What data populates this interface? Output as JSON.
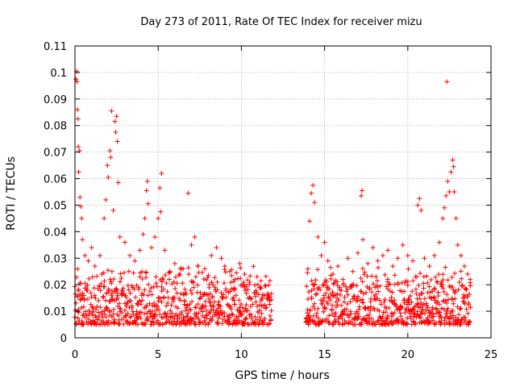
{
  "chart_data": {
    "type": "scatter",
    "title": "Day 273 of 2011, Rate Of TEC Index for receiver mizu",
    "xlabel": "GPS time / hours",
    "ylabel": "ROTI / TECUs",
    "xlim": [
      0,
      25
    ],
    "ylim": [
      0,
      0.11
    ],
    "grid": true,
    "marker": "+",
    "xticks": [
      0,
      5,
      10,
      15,
      20,
      25
    ],
    "xtick_labels": [
      "0",
      "5",
      "10",
      "15",
      "20",
      "25"
    ],
    "yticks": [
      0,
      0.01,
      0.02,
      0.03,
      0.04,
      0.05,
      0.06,
      0.07,
      0.08,
      0.09,
      0.1,
      0.11
    ],
    "ytick_labels": [
      "0",
      "0.01",
      "0.02",
      "0.03",
      "0.04",
      "0.05",
      "0.06",
      "0.07",
      "0.08",
      "0.09",
      "0.1",
      "0.11"
    ],
    "series": [
      {
        "name": "ROTI",
        "color": "#ff0000",
        "points": [
          [
            0.05,
            0.0975
          ],
          [
            0.1,
            0.1005
          ],
          [
            0.12,
            0.0965
          ],
          [
            0.15,
            0.086
          ],
          [
            0.18,
            0.0825
          ],
          [
            0.2,
            0.072
          ],
          [
            0.22,
            0.0625
          ],
          [
            0.28,
            0.0705
          ],
          [
            0.3,
            0.053
          ],
          [
            0.35,
            0.0495
          ],
          [
            0.4,
            0.045
          ],
          [
            0.45,
            0.037
          ],
          [
            0.6,
            0.031
          ],
          [
            0.8,
            0.029
          ],
          [
            1.0,
            0.034
          ],
          [
            1.2,
            0.027
          ],
          [
            1.5,
            0.031
          ],
          [
            1.75,
            0.045
          ],
          [
            1.85,
            0.052
          ],
          [
            1.95,
            0.065
          ],
          [
            2.0,
            0.0605
          ],
          [
            2.1,
            0.0705
          ],
          [
            2.15,
            0.068
          ],
          [
            2.2,
            0.0855
          ],
          [
            2.3,
            0.048
          ],
          [
            2.4,
            0.0815
          ],
          [
            2.45,
            0.0775
          ],
          [
            2.5,
            0.0835
          ],
          [
            2.55,
            0.074
          ],
          [
            2.6,
            0.0585
          ],
          [
            2.7,
            0.038
          ],
          [
            3.0,
            0.036
          ],
          [
            3.3,
            0.031
          ],
          [
            3.6,
            0.029
          ],
          [
            3.9,
            0.033
          ],
          [
            4.1,
            0.039
          ],
          [
            4.2,
            0.045
          ],
          [
            4.3,
            0.0555
          ],
          [
            4.35,
            0.059
          ],
          [
            4.4,
            0.0505
          ],
          [
            4.6,
            0.034
          ],
          [
            4.8,
            0.038
          ],
          [
            5.0,
            0.045
          ],
          [
            5.1,
            0.0565
          ],
          [
            5.15,
            0.0475
          ],
          [
            5.2,
            0.062
          ],
          [
            5.4,
            0.033
          ],
          [
            5.7,
            0.025
          ],
          [
            6.0,
            0.028
          ],
          [
            6.3,
            0.024
          ],
          [
            6.5,
            0.026
          ],
          [
            6.8,
            0.0545
          ],
          [
            7.0,
            0.035
          ],
          [
            7.2,
            0.038
          ],
          [
            7.4,
            0.027
          ],
          [
            7.8,
            0.026
          ],
          [
            8.2,
            0.031
          ],
          [
            8.5,
            0.034
          ],
          [
            8.8,
            0.03
          ],
          [
            9.0,
            0.027
          ],
          [
            9.3,
            0.025
          ],
          [
            9.6,
            0.022
          ],
          [
            9.9,
            0.028
          ],
          [
            10.2,
            0.024
          ],
          [
            10.5,
            0.021
          ],
          [
            10.8,
            0.017
          ],
          [
            11.1,
            0.019
          ],
          [
            11.4,
            0.016
          ],
          [
            11.7,
            0.014
          ],
          [
            14.0,
            0.026
          ],
          [
            14.1,
            0.044
          ],
          [
            14.2,
            0.0545
          ],
          [
            14.3,
            0.0575
          ],
          [
            14.4,
            0.051
          ],
          [
            14.6,
            0.038
          ],
          [
            14.8,
            0.031
          ],
          [
            15.0,
            0.036
          ],
          [
            15.2,
            0.029
          ],
          [
            15.5,
            0.024
          ],
          [
            15.8,
            0.027
          ],
          [
            16.1,
            0.022
          ],
          [
            16.4,
            0.03
          ],
          [
            16.7,
            0.025
          ],
          [
            17.0,
            0.032
          ],
          [
            17.2,
            0.0535
          ],
          [
            17.25,
            0.0555
          ],
          [
            17.3,
            0.037
          ],
          [
            17.6,
            0.028
          ],
          [
            17.9,
            0.034
          ],
          [
            18.2,
            0.029
          ],
          [
            18.5,
            0.031
          ],
          [
            18.8,
            0.033
          ],
          [
            19.1,
            0.027
          ],
          [
            19.4,
            0.03
          ],
          [
            19.7,
            0.035
          ],
          [
            20.0,
            0.031
          ],
          [
            20.3,
            0.029
          ],
          [
            20.6,
            0.05
          ],
          [
            20.7,
            0.0525
          ],
          [
            20.8,
            0.048
          ],
          [
            21.0,
            0.03
          ],
          [
            21.3,
            0.027
          ],
          [
            21.6,
            0.031
          ],
          [
            21.9,
            0.036
          ],
          [
            22.1,
            0.045
          ],
          [
            22.2,
            0.049
          ],
          [
            22.3,
            0.0535
          ],
          [
            22.35,
            0.0965
          ],
          [
            22.4,
            0.059
          ],
          [
            22.5,
            0.055
          ],
          [
            22.6,
            0.0625
          ],
          [
            22.7,
            0.067
          ],
          [
            22.75,
            0.0645
          ],
          [
            22.8,
            0.055
          ],
          [
            22.9,
            0.045
          ],
          [
            23.0,
            0.035
          ],
          [
            23.2,
            0.031
          ],
          [
            23.4,
            0.027
          ],
          [
            23.6,
            0.024
          ],
          [
            23.75,
            0.022
          ]
        ],
        "dense_band": {
          "note": "dense cluster of samples, typical ROTI values",
          "segments": [
            [
              0.0,
              11.8
            ],
            [
              13.9,
              23.8
            ]
          ],
          "y_typical_min": 0.005,
          "y_typical_max": 0.022
        }
      }
    ]
  }
}
